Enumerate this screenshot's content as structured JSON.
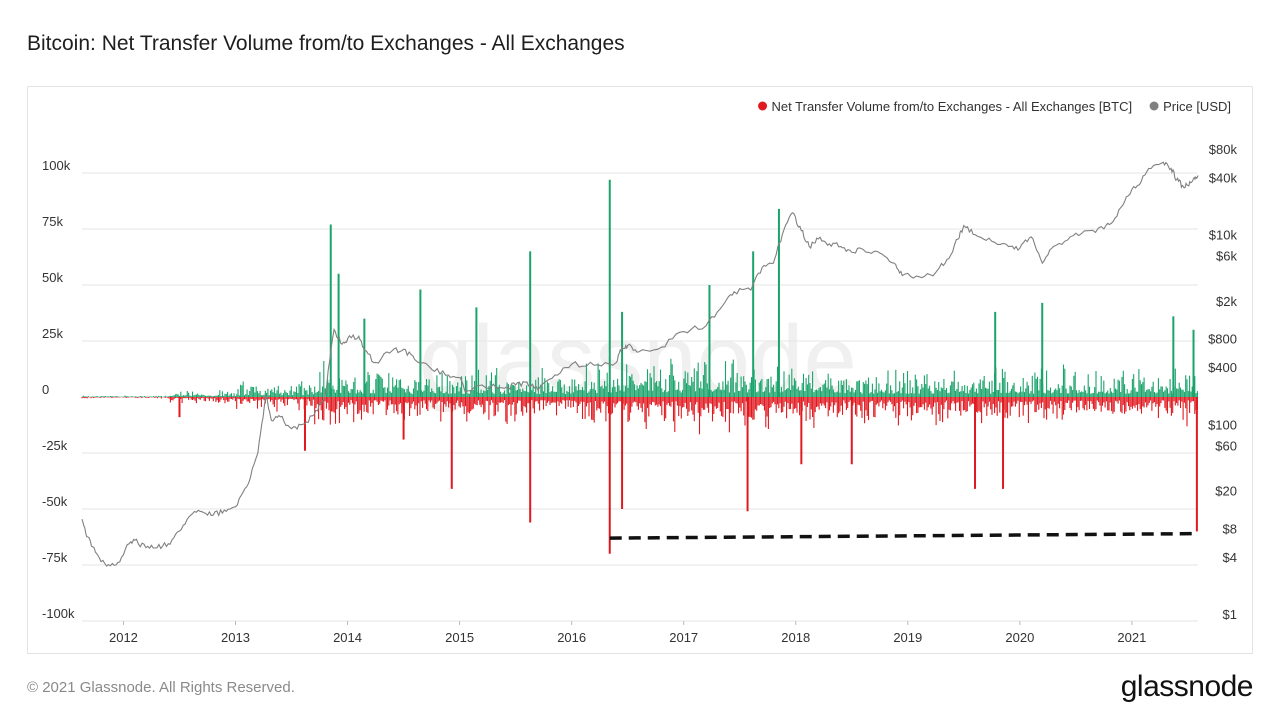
{
  "title": "Bitcoin: Net Transfer Volume from/to Exchanges - All Exchanges",
  "footer": {
    "copyright": "© 2021 Glassnode. All Rights Reserved.",
    "logo": "glassnode"
  },
  "watermark": "glassnode",
  "colors": {
    "inflow": "#1aa36a",
    "outflow": "#e0191f",
    "price": "#808080",
    "annotation": "#111111",
    "grid": "#e6e6e6"
  },
  "chart_data": {
    "type": "bar",
    "title": "Bitcoin: Net Transfer Volume from/to Exchanges - All Exchanges",
    "legend": [
      {
        "label": "Net Transfer Volume from/to Exchanges - All Exchanges [BTC]",
        "color": "#e0191f",
        "marker": "dot"
      },
      {
        "label": "Price [USD]",
        "color": "#808080",
        "marker": "dot"
      }
    ],
    "legend_position": "top-right",
    "x_ticks": [
      "2012",
      "2013",
      "2014",
      "2015",
      "2016",
      "2017",
      "2018",
      "2019",
      "2020",
      "2021"
    ],
    "x_range": [
      2011.63,
      2021.59
    ],
    "y_left": {
      "ticks": [
        100000,
        75000,
        50000,
        25000,
        0,
        -25000,
        -50000,
        -75000,
        -100000
      ],
      "tick_labels": [
        "100k",
        "75k",
        "50k",
        "25k",
        "0",
        "-25k",
        "-50k",
        "-75k",
        "-100k"
      ],
      "range": [
        -100000,
        100000
      ]
    },
    "y_right": {
      "scale": "log",
      "ticks": [
        80000,
        40000,
        10000,
        6000,
        2000,
        800,
        400,
        100,
        60,
        20,
        8,
        4,
        1
      ],
      "tick_labels": [
        "$80k",
        "$40k",
        "$10k",
        "$6k",
        "$2k",
        "$800",
        "$400",
        "$100",
        "$60",
        "$20",
        "$8",
        "$4",
        "$1"
      ],
      "range": [
        1,
        80000
      ]
    },
    "grid": true,
    "series": [
      {
        "name": "Net Transfer Volume from/to Exchanges - All Exchanges [BTC]",
        "type": "bar",
        "notable_values": [
          {
            "x": 2013.85,
            "y": 77000
          },
          {
            "x": 2013.92,
            "y": 55000
          },
          {
            "x": 2014.15,
            "y": 35000
          },
          {
            "x": 2014.65,
            "y": 48000
          },
          {
            "x": 2015.15,
            "y": 40000
          },
          {
            "x": 2015.63,
            "y": 65000
          },
          {
            "x": 2016.34,
            "y": 97000
          },
          {
            "x": 2016.45,
            "y": 38000
          },
          {
            "x": 2017.23,
            "y": 50000
          },
          {
            "x": 2017.62,
            "y": 65000
          },
          {
            "x": 2017.85,
            "y": 84000
          },
          {
            "x": 2019.78,
            "y": 38000
          },
          {
            "x": 2020.2,
            "y": 42000
          },
          {
            "x": 2021.37,
            "y": 36000
          },
          {
            "x": 2021.55,
            "y": 30000
          },
          {
            "x": 2012.5,
            "y": -9000
          },
          {
            "x": 2013.62,
            "y": -24000
          },
          {
            "x": 2014.5,
            "y": -19000
          },
          {
            "x": 2014.93,
            "y": -41000
          },
          {
            "x": 2015.63,
            "y": -56000
          },
          {
            "x": 2016.34,
            "y": -70000
          },
          {
            "x": 2016.45,
            "y": -50000
          },
          {
            "x": 2017.57,
            "y": -51000
          },
          {
            "x": 2018.05,
            "y": -30000
          },
          {
            "x": 2018.5,
            "y": -30000
          },
          {
            "x": 2019.6,
            "y": -41000
          },
          {
            "x": 2019.85,
            "y": -41000
          },
          {
            "x": 2021.58,
            "y": -60000
          }
        ]
      },
      {
        "name": "Price [USD]",
        "type": "line",
        "axis": "right",
        "points": [
          [
            2011.63,
            10
          ],
          [
            2011.68,
            6.5
          ],
          [
            2011.75,
            4.5
          ],
          [
            2011.85,
            3.2
          ],
          [
            2011.95,
            3.5
          ],
          [
            2012.05,
            5.5
          ],
          [
            2012.1,
            6
          ],
          [
            2012.2,
            5
          ],
          [
            2012.3,
            5
          ],
          [
            2012.4,
            5.5
          ],
          [
            2012.5,
            7.5
          ],
          [
            2012.6,
            11
          ],
          [
            2012.7,
            12
          ],
          [
            2012.8,
            11
          ],
          [
            2012.9,
            12.5
          ],
          [
            2013.0,
            13.5
          ],
          [
            2013.1,
            22
          ],
          [
            2013.2,
            50
          ],
          [
            2013.27,
            200
          ],
          [
            2013.32,
            110
          ],
          [
            2013.4,
            120
          ],
          [
            2013.5,
            90
          ],
          [
            2013.6,
            100
          ],
          [
            2013.7,
            125
          ],
          [
            2013.8,
            200
          ],
          [
            2013.88,
            1000
          ],
          [
            2013.95,
            700
          ],
          [
            2014.0,
            800
          ],
          [
            2014.1,
            850
          ],
          [
            2014.15,
            600
          ],
          [
            2014.25,
            450
          ],
          [
            2014.4,
            600
          ],
          [
            2014.5,
            620
          ],
          [
            2014.6,
            480
          ],
          [
            2014.75,
            380
          ],
          [
            2014.9,
            330
          ],
          [
            2015.0,
            310
          ],
          [
            2015.05,
            220
          ],
          [
            2015.2,
            260
          ],
          [
            2015.4,
            240
          ],
          [
            2015.5,
            260
          ],
          [
            2015.6,
            280
          ],
          [
            2015.7,
            230
          ],
          [
            2015.85,
            330
          ],
          [
            2016.0,
            430
          ],
          [
            2016.2,
            420
          ],
          [
            2016.4,
            450
          ],
          [
            2016.45,
            650
          ],
          [
            2016.5,
            680
          ],
          [
            2016.6,
            580
          ],
          [
            2016.8,
            650
          ],
          [
            2017.0,
            950
          ],
          [
            2017.2,
            1100
          ],
          [
            2017.35,
            1800
          ],
          [
            2017.45,
            2500
          ],
          [
            2017.6,
            2600
          ],
          [
            2017.7,
            4500
          ],
          [
            2017.8,
            5000
          ],
          [
            2017.88,
            10000
          ],
          [
            2017.97,
            17000
          ],
          [
            2018.05,
            11000
          ],
          [
            2018.12,
            7500
          ],
          [
            2018.2,
            9000
          ],
          [
            2018.3,
            8000
          ],
          [
            2018.4,
            7500
          ],
          [
            2018.5,
            6500
          ],
          [
            2018.6,
            7000
          ],
          [
            2018.75,
            6400
          ],
          [
            2018.88,
            5000
          ],
          [
            2018.95,
            3700
          ],
          [
            2019.1,
            3600
          ],
          [
            2019.25,
            4000
          ],
          [
            2019.35,
            5500
          ],
          [
            2019.45,
            9000
          ],
          [
            2019.5,
            12500
          ],
          [
            2019.6,
            10000
          ],
          [
            2019.75,
            8500
          ],
          [
            2019.9,
            7500
          ],
          [
            2020.0,
            7200
          ],
          [
            2020.1,
            9500
          ],
          [
            2020.2,
            5000
          ],
          [
            2020.3,
            7500
          ],
          [
            2020.45,
            9500
          ],
          [
            2020.6,
            11000
          ],
          [
            2020.75,
            11500
          ],
          [
            2020.85,
            15000
          ],
          [
            2020.95,
            25000
          ],
          [
            2021.05,
            33000
          ],
          [
            2021.15,
            50000
          ],
          [
            2021.28,
            58000
          ],
          [
            2021.35,
            50000
          ],
          [
            2021.4,
            38000
          ],
          [
            2021.45,
            33000
          ],
          [
            2021.5,
            33000
          ],
          [
            2021.55,
            39000
          ],
          [
            2021.59,
            42000
          ]
        ]
      }
    ],
    "annotation": {
      "type": "dashed-line",
      "from": {
        "x": 2016.34,
        "y": -63000
      },
      "to": {
        "x": 2021.58,
        "y": -61000
      }
    }
  }
}
